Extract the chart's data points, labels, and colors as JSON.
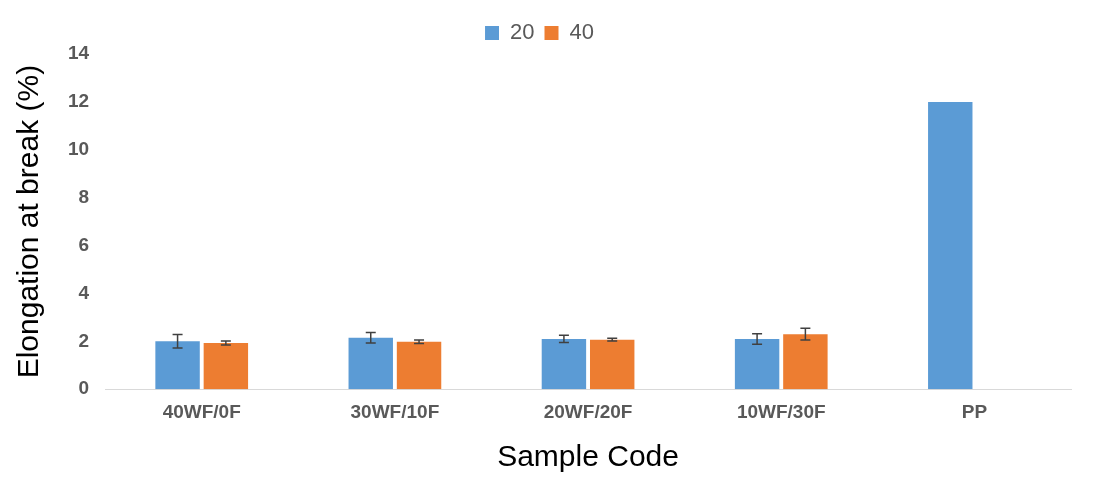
{
  "chart_data": {
    "type": "bar",
    "xlabel": "Sample Code",
    "ylabel": "Elongation at break (%)",
    "categories": [
      "40WF/0F",
      "30WF/10F",
      "20WF/20F",
      "10WF/30F",
      "PP"
    ],
    "series": [
      {
        "name": "20",
        "color": "#5b9bd5",
        "values": [
          2.0,
          2.15,
          2.1,
          2.1,
          12.0
        ],
        "errors": [
          0.28,
          0.22,
          0.15,
          0.22,
          null
        ]
      },
      {
        "name": "40",
        "color": "#ed7d31",
        "values": [
          1.93,
          1.98,
          2.07,
          2.3,
          null
        ],
        "errors": [
          0.08,
          0.07,
          0.06,
          0.25,
          null
        ]
      }
    ],
    "ylim": [
      0,
      14
    ],
    "yticks": [
      0,
      2,
      4,
      6,
      8,
      10,
      12,
      14
    ],
    "grid": false,
    "legend": "top"
  }
}
